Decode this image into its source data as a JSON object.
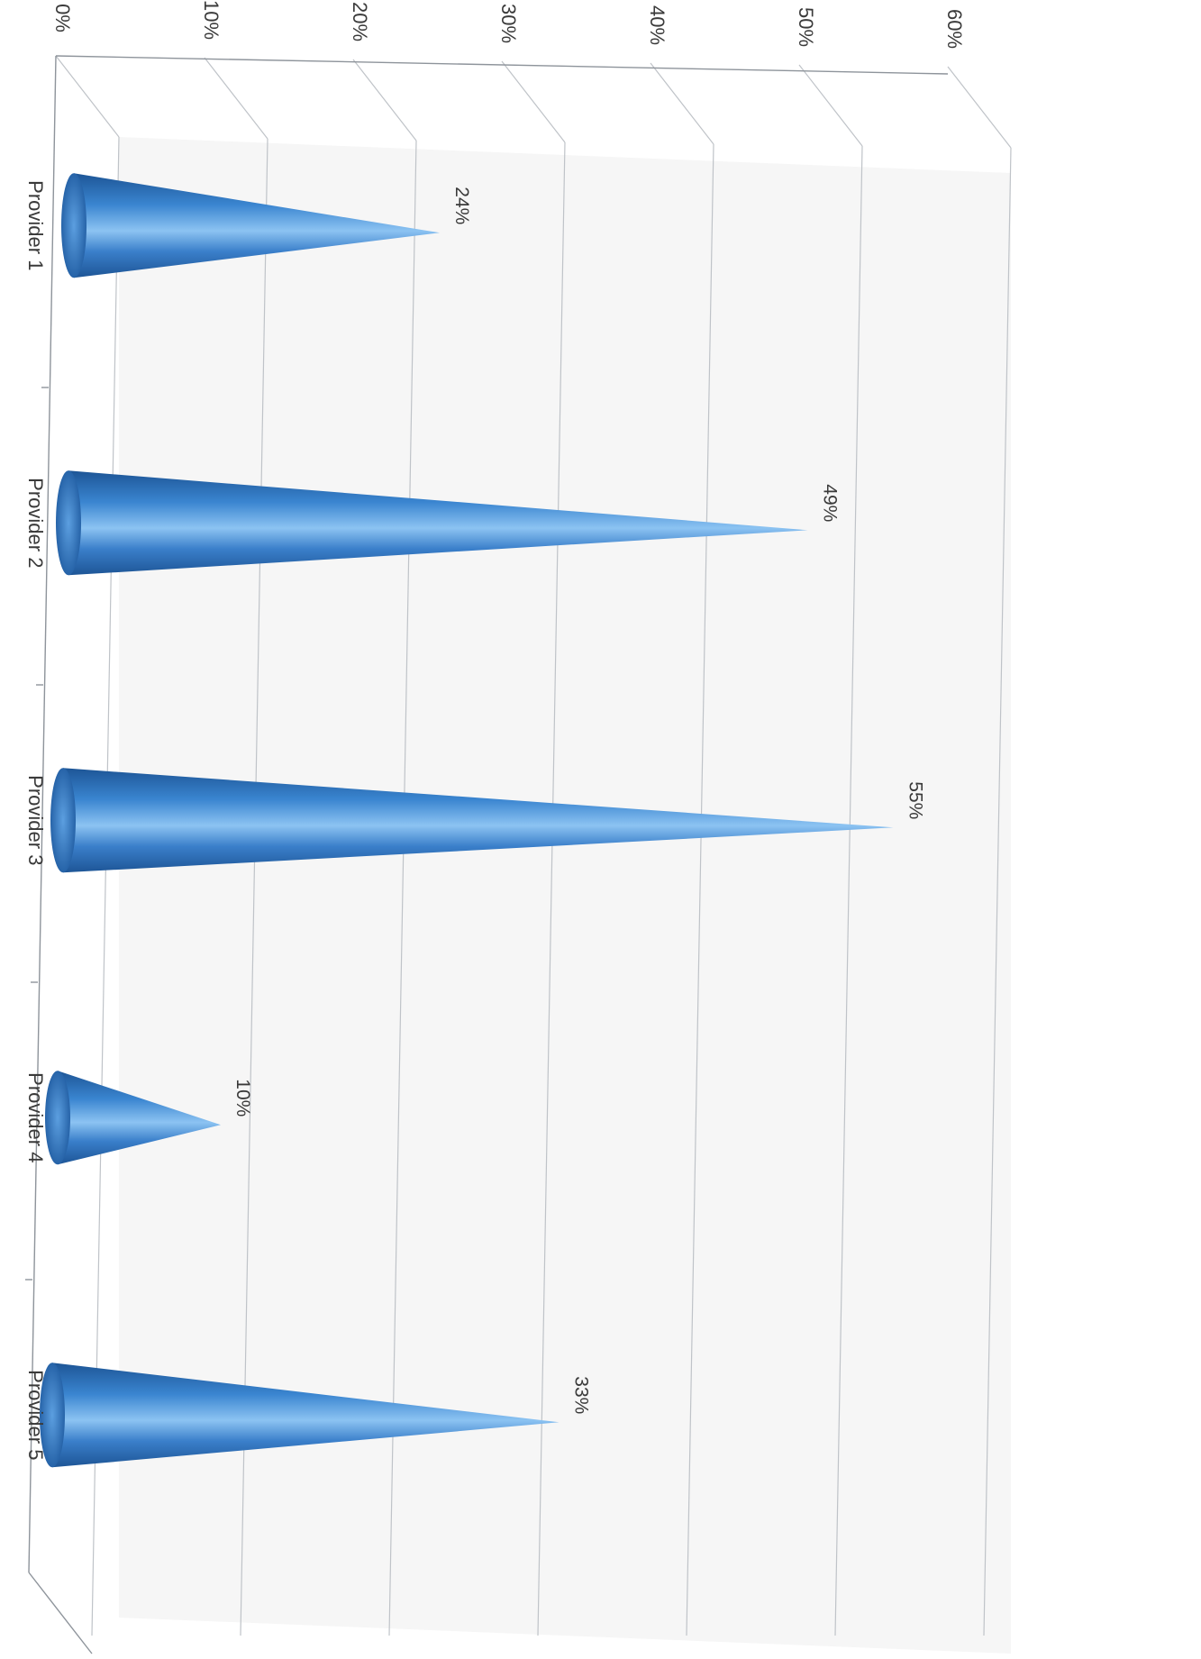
{
  "chart_data": {
    "type": "bar",
    "style": "3d-cone",
    "orientation": "rotated-90-clockwise",
    "categories": [
      "Provider 1",
      "Provider 2",
      "Provider 3",
      "Provider 4",
      "Provider 5"
    ],
    "series": [
      {
        "values": [
          0.24,
          0.49,
          0.55,
          0.1,
          0.33
        ]
      }
    ],
    "data_labels": [
      "24%",
      "49%",
      "55%",
      "10%",
      "33%"
    ],
    "y_ticks": [
      "0%",
      "10%",
      "20%",
      "30%",
      "40%",
      "50%",
      "60%"
    ],
    "ylim": [
      0,
      0.6
    ],
    "grid": true,
    "legend": "none",
    "colors": {
      "cone": "#2f74c0",
      "cone_light": "#8cc3f2",
      "cone_dark": "#1d5596",
      "grid": "#bfc3c8"
    }
  }
}
